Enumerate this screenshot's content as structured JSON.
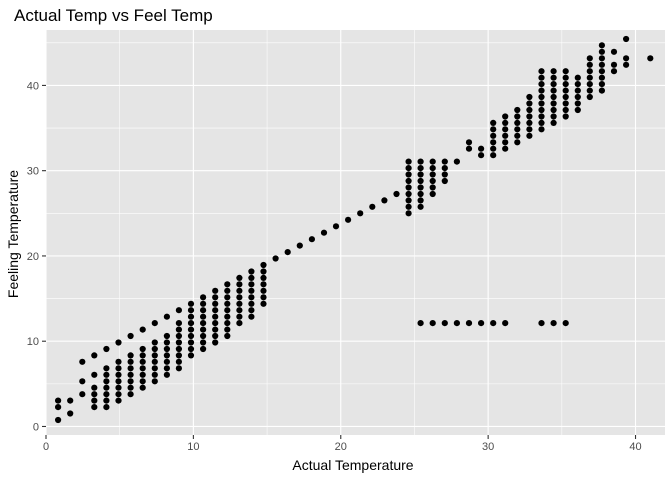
{
  "chart_data": {
    "type": "scatter",
    "title": "Actual Temp vs Feel Temp",
    "xlabel": "Actual Temperature",
    "ylabel": "Feeling Temperature",
    "xlim": [
      0,
      42
    ],
    "ylim": [
      -1,
      46.5
    ],
    "x_ticks": [
      0,
      10,
      20,
      30,
      40
    ],
    "y_ticks": [
      0,
      10,
      20,
      30,
      40
    ],
    "grid": true,
    "legend": "none",
    "colors": {
      "panel": "#e5e5e5",
      "grid": "#ffffff",
      "point": "#000000",
      "tick": "#4d4d4d"
    },
    "points": [
      [
        0.82,
        0.76
      ],
      [
        0.82,
        2.27
      ],
      [
        0.82,
        3.03
      ],
      [
        1.64,
        1.52
      ],
      [
        1.64,
        3.03
      ],
      [
        2.46,
        3.79
      ],
      [
        2.46,
        5.3
      ],
      [
        2.46,
        7.58
      ],
      [
        3.28,
        2.27
      ],
      [
        3.28,
        3.03
      ],
      [
        3.28,
        3.79
      ],
      [
        3.28,
        4.55
      ],
      [
        3.28,
        6.06
      ],
      [
        3.28,
        8.33
      ],
      [
        4.1,
        2.27
      ],
      [
        4.1,
        3.03
      ],
      [
        4.1,
        3.79
      ],
      [
        4.1,
        4.55
      ],
      [
        4.1,
        5.3
      ],
      [
        4.1,
        6.06
      ],
      [
        4.1,
        6.82
      ],
      [
        4.1,
        9.09
      ],
      [
        4.92,
        3.03
      ],
      [
        4.92,
        3.79
      ],
      [
        4.92,
        4.55
      ],
      [
        4.92,
        5.3
      ],
      [
        4.92,
        6.06
      ],
      [
        4.92,
        6.82
      ],
      [
        4.92,
        7.58
      ],
      [
        4.92,
        9.85
      ],
      [
        5.74,
        3.79
      ],
      [
        5.74,
        4.55
      ],
      [
        5.74,
        5.3
      ],
      [
        5.74,
        6.06
      ],
      [
        5.74,
        6.82
      ],
      [
        5.74,
        7.58
      ],
      [
        5.74,
        8.33
      ],
      [
        5.74,
        10.61
      ],
      [
        6.56,
        4.55
      ],
      [
        6.56,
        5.3
      ],
      [
        6.56,
        6.06
      ],
      [
        6.56,
        6.82
      ],
      [
        6.56,
        7.58
      ],
      [
        6.56,
        8.33
      ],
      [
        6.56,
        9.09
      ],
      [
        6.56,
        11.36
      ],
      [
        7.38,
        5.3
      ],
      [
        7.38,
        6.06
      ],
      [
        7.38,
        6.82
      ],
      [
        7.38,
        7.58
      ],
      [
        7.38,
        8.33
      ],
      [
        7.38,
        9.09
      ],
      [
        7.38,
        9.85
      ],
      [
        7.38,
        12.12
      ],
      [
        8.2,
        6.06
      ],
      [
        8.2,
        6.82
      ],
      [
        8.2,
        7.58
      ],
      [
        8.2,
        8.33
      ],
      [
        8.2,
        9.09
      ],
      [
        8.2,
        9.85
      ],
      [
        8.2,
        10.61
      ],
      [
        8.2,
        12.88
      ],
      [
        9.02,
        6.82
      ],
      [
        9.02,
        7.58
      ],
      [
        9.02,
        8.33
      ],
      [
        9.02,
        9.09
      ],
      [
        9.02,
        9.85
      ],
      [
        9.02,
        10.61
      ],
      [
        9.02,
        11.36
      ],
      [
        9.02,
        12.12
      ],
      [
        9.02,
        13.64
      ],
      [
        9.84,
        8.33
      ],
      [
        9.84,
        9.09
      ],
      [
        9.84,
        9.85
      ],
      [
        9.84,
        10.61
      ],
      [
        9.84,
        11.36
      ],
      [
        9.84,
        12.12
      ],
      [
        9.84,
        12.88
      ],
      [
        9.84,
        13.64
      ],
      [
        9.84,
        14.39
      ],
      [
        10.66,
        9.09
      ],
      [
        10.66,
        9.85
      ],
      [
        10.66,
        10.61
      ],
      [
        10.66,
        11.36
      ],
      [
        10.66,
        12.12
      ],
      [
        10.66,
        12.88
      ],
      [
        10.66,
        13.64
      ],
      [
        10.66,
        14.39
      ],
      [
        10.66,
        15.15
      ],
      [
        11.48,
        9.85
      ],
      [
        11.48,
        10.61
      ],
      [
        11.48,
        11.36
      ],
      [
        11.48,
        12.12
      ],
      [
        11.48,
        12.88
      ],
      [
        11.48,
        13.64
      ],
      [
        11.48,
        14.39
      ],
      [
        11.48,
        15.15
      ],
      [
        11.48,
        15.91
      ],
      [
        12.3,
        10.61
      ],
      [
        12.3,
        11.36
      ],
      [
        12.3,
        12.12
      ],
      [
        12.3,
        12.88
      ],
      [
        12.3,
        13.64
      ],
      [
        12.3,
        14.39
      ],
      [
        12.3,
        15.15
      ],
      [
        12.3,
        15.91
      ],
      [
        12.3,
        16.67
      ],
      [
        13.12,
        12.12
      ],
      [
        13.12,
        12.88
      ],
      [
        13.12,
        13.64
      ],
      [
        13.12,
        14.39
      ],
      [
        13.12,
        15.15
      ],
      [
        13.12,
        15.91
      ],
      [
        13.12,
        16.67
      ],
      [
        13.12,
        17.42
      ],
      [
        13.94,
        12.88
      ],
      [
        13.94,
        13.64
      ],
      [
        13.94,
        14.39
      ],
      [
        13.94,
        15.15
      ],
      [
        13.94,
        15.91
      ],
      [
        13.94,
        16.67
      ],
      [
        13.94,
        17.42
      ],
      [
        13.94,
        18.18
      ],
      [
        14.76,
        14.39
      ],
      [
        14.76,
        15.15
      ],
      [
        14.76,
        15.91
      ],
      [
        14.76,
        16.67
      ],
      [
        14.76,
        17.42
      ],
      [
        14.76,
        18.18
      ],
      [
        14.76,
        18.94
      ],
      [
        15.58,
        19.7
      ],
      [
        16.4,
        20.45
      ],
      [
        17.22,
        21.21
      ],
      [
        18.04,
        21.97
      ],
      [
        18.86,
        22.73
      ],
      [
        19.68,
        23.48
      ],
      [
        20.5,
        24.24
      ],
      [
        21.32,
        25.0
      ],
      [
        22.14,
        25.76
      ],
      [
        22.96,
        26.52
      ],
      [
        23.78,
        27.27
      ],
      [
        24.6,
        25.0
      ],
      [
        24.6,
        25.76
      ],
      [
        24.6,
        26.52
      ],
      [
        24.6,
        27.27
      ],
      [
        24.6,
        28.03
      ],
      [
        24.6,
        28.79
      ],
      [
        24.6,
        29.55
      ],
      [
        24.6,
        30.3
      ],
      [
        24.6,
        31.06
      ],
      [
        25.42,
        25.76
      ],
      [
        25.42,
        26.52
      ],
      [
        25.42,
        27.27
      ],
      [
        25.42,
        28.03
      ],
      [
        25.42,
        28.79
      ],
      [
        25.42,
        29.55
      ],
      [
        25.42,
        30.3
      ],
      [
        25.42,
        31.06
      ],
      [
        26.24,
        27.27
      ],
      [
        26.24,
        28.03
      ],
      [
        26.24,
        28.79
      ],
      [
        26.24,
        29.55
      ],
      [
        26.24,
        30.3
      ],
      [
        26.24,
        31.06
      ],
      [
        27.06,
        28.79
      ],
      [
        27.06,
        29.55
      ],
      [
        27.06,
        30.3
      ],
      [
        27.06,
        31.06
      ],
      [
        27.88,
        31.06
      ],
      [
        28.7,
        32.58
      ],
      [
        28.7,
        33.33
      ],
      [
        29.52,
        31.82
      ],
      [
        29.52,
        32.58
      ],
      [
        30.34,
        31.82
      ],
      [
        30.34,
        32.58
      ],
      [
        30.34,
        33.33
      ],
      [
        30.34,
        34.09
      ],
      [
        30.34,
        34.85
      ],
      [
        30.34,
        35.61
      ],
      [
        31.16,
        32.58
      ],
      [
        31.16,
        33.33
      ],
      [
        31.16,
        34.09
      ],
      [
        31.16,
        34.85
      ],
      [
        31.16,
        35.61
      ],
      [
        31.16,
        36.36
      ],
      [
        31.98,
        33.33
      ],
      [
        31.98,
        34.09
      ],
      [
        31.98,
        34.85
      ],
      [
        31.98,
        35.61
      ],
      [
        31.98,
        36.36
      ],
      [
        31.98,
        37.12
      ],
      [
        32.8,
        34.09
      ],
      [
        32.8,
        34.85
      ],
      [
        32.8,
        35.61
      ],
      [
        32.8,
        36.36
      ],
      [
        32.8,
        37.12
      ],
      [
        32.8,
        37.88
      ],
      [
        32.8,
        38.64
      ],
      [
        33.62,
        34.85
      ],
      [
        33.62,
        35.61
      ],
      [
        33.62,
        36.36
      ],
      [
        33.62,
        37.12
      ],
      [
        33.62,
        37.88
      ],
      [
        33.62,
        38.64
      ],
      [
        33.62,
        39.39
      ],
      [
        33.62,
        40.15
      ],
      [
        33.62,
        40.91
      ],
      [
        33.62,
        41.67
      ],
      [
        34.44,
        35.61
      ],
      [
        34.44,
        36.36
      ],
      [
        34.44,
        37.12
      ],
      [
        34.44,
        37.88
      ],
      [
        34.44,
        38.64
      ],
      [
        34.44,
        39.39
      ],
      [
        34.44,
        40.15
      ],
      [
        34.44,
        40.91
      ],
      [
        34.44,
        41.67
      ],
      [
        35.26,
        36.36
      ],
      [
        35.26,
        37.12
      ],
      [
        35.26,
        37.88
      ],
      [
        35.26,
        38.64
      ],
      [
        35.26,
        39.39
      ],
      [
        35.26,
        40.15
      ],
      [
        35.26,
        40.91
      ],
      [
        35.26,
        41.67
      ],
      [
        36.08,
        37.12
      ],
      [
        36.08,
        37.88
      ],
      [
        36.08,
        38.64
      ],
      [
        36.08,
        39.39
      ],
      [
        36.08,
        40.15
      ],
      [
        36.08,
        40.91
      ],
      [
        36.9,
        38.64
      ],
      [
        36.9,
        39.39
      ],
      [
        36.9,
        40.15
      ],
      [
        36.9,
        40.91
      ],
      [
        36.9,
        41.67
      ],
      [
        36.9,
        42.42
      ],
      [
        36.9,
        43.18
      ],
      [
        37.72,
        39.39
      ],
      [
        37.72,
        40.15
      ],
      [
        37.72,
        40.91
      ],
      [
        37.72,
        41.67
      ],
      [
        37.72,
        42.42
      ],
      [
        37.72,
        43.18
      ],
      [
        37.72,
        43.94
      ],
      [
        37.72,
        44.7
      ],
      [
        38.54,
        41.67
      ],
      [
        38.54,
        42.42
      ],
      [
        38.54,
        43.94
      ],
      [
        39.36,
        42.42
      ],
      [
        39.36,
        43.18
      ],
      [
        39.36,
        45.45
      ],
      [
        41.0,
        43.18
      ],
      [
        25.42,
        12.12
      ],
      [
        26.24,
        12.12
      ],
      [
        27.06,
        12.12
      ],
      [
        27.88,
        12.12
      ],
      [
        28.7,
        12.12
      ],
      [
        29.52,
        12.12
      ],
      [
        30.34,
        12.12
      ],
      [
        31.16,
        12.12
      ],
      [
        33.62,
        12.12
      ],
      [
        34.44,
        12.12
      ],
      [
        35.26,
        12.12
      ]
    ]
  }
}
